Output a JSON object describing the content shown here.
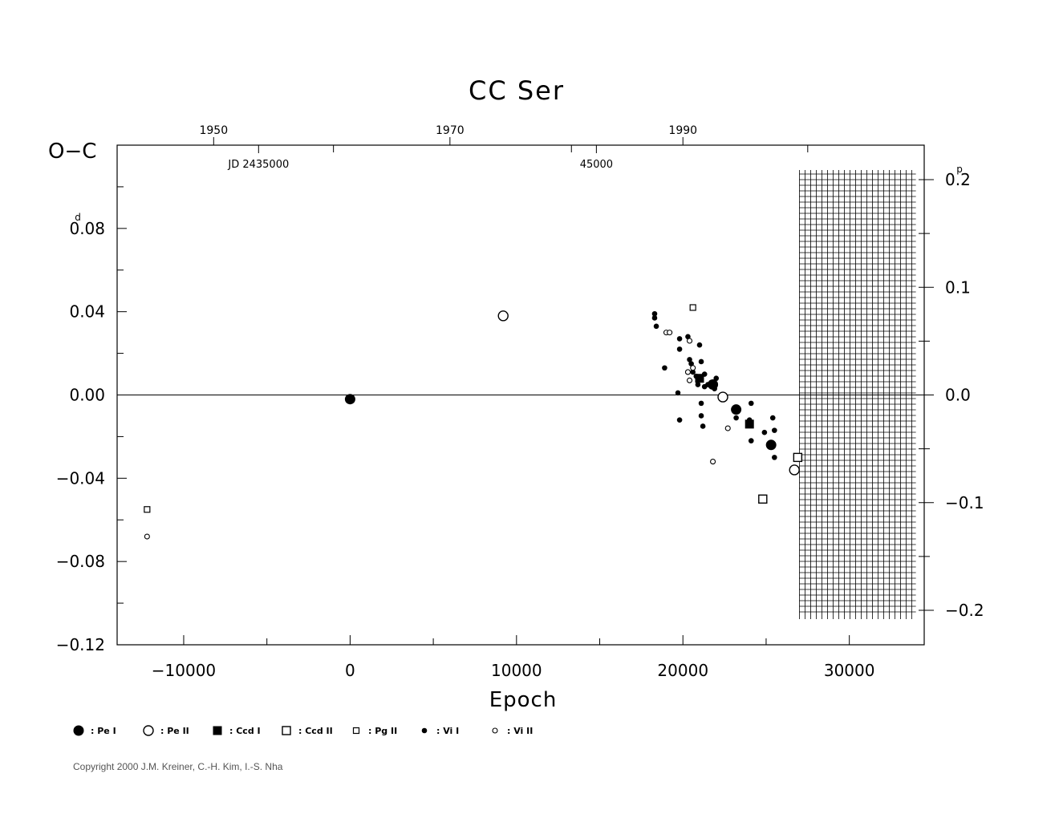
{
  "chart_data": {
    "type": "scatter",
    "title": "CC Ser",
    "xlabel": "Epoch",
    "ylabel": "O−C",
    "left_unit": "d",
    "right_unit": "p",
    "xlim": [
      -14000,
      34500
    ],
    "ylim": [
      -0.12,
      0.12
    ],
    "right_ylim": [
      -0.2,
      0.2
    ],
    "x_ticks": [
      -10000,
      0,
      10000,
      20000,
      30000
    ],
    "x_tick_labels": [
      "−10000",
      "0",
      "10000",
      "20000",
      "30000"
    ],
    "y_ticks": [
      -0.12,
      -0.08,
      -0.04,
      0.0,
      0.04,
      0.08
    ],
    "y_tick_labels": [
      "−0.12",
      "−0.08",
      "−0.04",
      "0.00",
      "0.04",
      "0.08"
    ],
    "right_ticks": [
      -0.2,
      -0.1,
      0.0,
      0.1,
      0.2
    ],
    "right_tick_labels": [
      "−0.2",
      "−0.1",
      "0.0",
      "0.1",
      "0.2"
    ],
    "top_year_ticks": [
      {
        "epoch": -8200,
        "label": "1950"
      },
      {
        "epoch": 6000,
        "label": "1970"
      },
      {
        "epoch": 20000,
        "label": "1990"
      }
    ],
    "top_extra_ticks": [
      -1000,
      13300,
      27500
    ],
    "jd_labels": [
      {
        "epoch": -5500,
        "label": "JD  2435000"
      },
      {
        "epoch": 14800,
        "label": "45000"
      }
    ],
    "zero_line": true,
    "shaded_region": {
      "from": 27000,
      "to": 34000
    },
    "legend": [
      {
        "symbol": "filled-circle-large",
        "label": ": Pe  I"
      },
      {
        "symbol": "open-circle-large",
        "label": ": Pe  II"
      },
      {
        "symbol": "filled-square",
        "label": ": Ccd  I"
      },
      {
        "symbol": "open-square",
        "label": ": Ccd  II"
      },
      {
        "symbol": "open-square-small",
        "label": ": Pg  II"
      },
      {
        "symbol": "filled-circle-small",
        "label": ": Vi  I"
      },
      {
        "symbol": "open-circle-small",
        "label": ": Vi  II"
      }
    ],
    "series": [
      {
        "name": ": Pe  I",
        "symbol": "filled-circle-large",
        "points": [
          [
            0,
            -0.002
          ],
          [
            21800,
            0.005
          ],
          [
            23200,
            -0.007
          ],
          [
            25300,
            -0.024
          ]
        ]
      },
      {
        "name": ": Pe  II",
        "symbol": "open-circle-large",
        "points": [
          [
            9200,
            0.038
          ],
          [
            22400,
            -0.001
          ],
          [
            26700,
            -0.036
          ]
        ]
      },
      {
        "name": ": Ccd  I",
        "symbol": "filled-square",
        "points": [
          [
            21000,
            0.008
          ],
          [
            24000,
            -0.014
          ]
        ]
      },
      {
        "name": ": Ccd  II",
        "symbol": "open-square",
        "points": [
          [
            24800,
            -0.05
          ],
          [
            26900,
            -0.03
          ]
        ]
      },
      {
        "name": ": Pg  II",
        "symbol": "open-square-small",
        "points": [
          [
            -12200,
            -0.055
          ],
          [
            20600,
            0.042
          ]
        ]
      },
      {
        "name": ": Vi  I",
        "symbol": "filled-circle-small",
        "points": [
          [
            18300,
            0.039
          ],
          [
            18300,
            0.037
          ],
          [
            18400,
            0.033
          ],
          [
            18900,
            0.013
          ],
          [
            19700,
            0.001
          ],
          [
            19800,
            0.022
          ],
          [
            19800,
            0.027
          ],
          [
            19800,
            -0.012
          ],
          [
            20300,
            0.028
          ],
          [
            20400,
            0.017
          ],
          [
            20500,
            0.015
          ],
          [
            20600,
            0.011
          ],
          [
            20800,
            0.009
          ],
          [
            20900,
            0.005
          ],
          [
            21000,
            0.024
          ],
          [
            21100,
            0.016
          ],
          [
            21100,
            -0.004
          ],
          [
            21100,
            -0.01
          ],
          [
            21200,
            -0.015
          ],
          [
            21300,
            0.01
          ],
          [
            21300,
            0.004
          ],
          [
            21500,
            0.005
          ],
          [
            21700,
            0.006
          ],
          [
            21900,
            0.003
          ],
          [
            22000,
            0.008
          ],
          [
            23200,
            -0.011
          ],
          [
            24000,
            -0.012
          ],
          [
            24100,
            -0.004
          ],
          [
            24100,
            -0.022
          ],
          [
            24900,
            -0.018
          ],
          [
            25400,
            -0.011
          ],
          [
            25500,
            -0.03
          ],
          [
            25500,
            -0.017
          ]
        ]
      },
      {
        "name": ": Vi  II",
        "symbol": "open-circle-small",
        "points": [
          [
            -12200,
            -0.068
          ],
          [
            19000,
            0.03
          ],
          [
            19200,
            0.03
          ],
          [
            20300,
            0.011
          ],
          [
            20400,
            0.007
          ],
          [
            20400,
            0.026
          ],
          [
            20600,
            0.013
          ],
          [
            22700,
            -0.016
          ],
          [
            21800,
            -0.032
          ]
        ]
      }
    ],
    "copyright": "Copyright 2000 J.M. Kreiner, C.-H. Kim, I.-S. Nha"
  }
}
